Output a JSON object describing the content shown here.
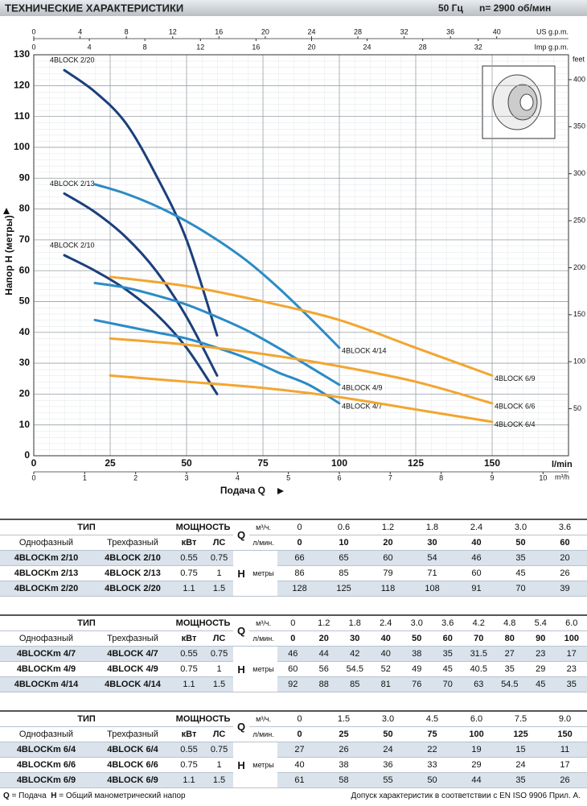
{
  "header": {
    "title": "ТЕХНИЧЕСКИЕ ХАРАКТЕРИСТИКИ",
    "freq": "50 Гц",
    "speed": "n= 2900 об/мин"
  },
  "chart_data": {
    "type": "line",
    "y_label": "Напор H (метры)",
    "x_label": "Подача Q",
    "x_unit": "l/min",
    "x_m3h_unit": "m³/h",
    "x_us_unit": "US g.p.m.",
    "x_imp_unit": "Imp g.p.m.",
    "y2_unit": "feet",
    "xlim": [
      0,
      175
    ],
    "xticks": [
      0,
      25,
      50,
      75,
      100,
      125,
      150
    ],
    "x_m3h_lim": [
      0,
      10.5
    ],
    "x_m3h_ticks": [
      0,
      1,
      2,
      3,
      4,
      5,
      6,
      7,
      8,
      9,
      10
    ],
    "x_us_lim": [
      0,
      46.2
    ],
    "x_us_ticks": [
      0,
      4,
      8,
      12,
      16,
      20,
      24,
      28,
      32,
      36,
      40
    ],
    "x_imp_lim": [
      0,
      38.5
    ],
    "x_imp_ticks": [
      0,
      4,
      8,
      12,
      16,
      20,
      24,
      28,
      32
    ],
    "ylim": [
      0,
      130
    ],
    "yticks": [
      0,
      10,
      20,
      30,
      40,
      50,
      60,
      70,
      80,
      90,
      100,
      110,
      120,
      130
    ],
    "y2lim": [
      0,
      426.5
    ],
    "y2ticks": [
      50,
      100,
      150,
      200,
      250,
      300,
      350,
      400
    ],
    "grid": true,
    "series": [
      {
        "name": "4BLOCK 2/20",
        "color": "#1b3f7c",
        "x": [
          10,
          20,
          30,
          40,
          50,
          60
        ],
        "values": [
          125,
          118,
          108,
          91,
          70,
          39
        ]
      },
      {
        "name": "4BLOCK 2/13",
        "color": "#1b3f7c",
        "x": [
          10,
          20,
          30,
          40,
          50,
          60
        ],
        "values": [
          85,
          79,
          71,
          60,
          45,
          26
        ]
      },
      {
        "name": "4BLOCK 2/10",
        "color": "#1b3f7c",
        "x": [
          10,
          20,
          30,
          40,
          50,
          60
        ],
        "values": [
          65,
          60,
          54,
          46,
          35,
          20
        ]
      },
      {
        "name": "4BLOCK 4/14",
        "color": "#2b8bc6",
        "x": [
          20,
          30,
          40,
          50,
          60,
          70,
          80,
          90,
          100
        ],
        "values": [
          88,
          85,
          81,
          76,
          70,
          63,
          54.5,
          45,
          35
        ]
      },
      {
        "name": "4BLOCK 4/9",
        "color": "#2b8bc6",
        "x": [
          20,
          30,
          40,
          50,
          60,
          70,
          80,
          90,
          100
        ],
        "values": [
          56,
          54.5,
          52,
          49,
          45,
          40.5,
          35,
          29,
          23
        ]
      },
      {
        "name": "4BLOCK 4/7",
        "color": "#2b8bc6",
        "x": [
          20,
          30,
          40,
          50,
          60,
          70,
          80,
          90,
          100
        ],
        "values": [
          44,
          42,
          40,
          38,
          35,
          31.5,
          27,
          23,
          17
        ]
      },
      {
        "name": "4BLOCK 6/9",
        "color": "#f3a530",
        "x": [
          25,
          50,
          75,
          100,
          125,
          150
        ],
        "values": [
          58,
          55,
          50,
          44,
          35,
          26
        ]
      },
      {
        "name": "4BLOCK 6/6",
        "color": "#f3a530",
        "x": [
          25,
          50,
          75,
          100,
          125,
          150
        ],
        "values": [
          38,
          36,
          33,
          29,
          24,
          17
        ]
      },
      {
        "name": "4BLOCK 6/4",
        "color": "#f3a530",
        "x": [
          25,
          50,
          75,
          100,
          125,
          150
        ],
        "values": [
          26,
          24,
          22,
          19,
          15,
          11
        ]
      }
    ]
  },
  "tables": [
    {
      "type_h": "ТИП",
      "power_h": "МОЩНОСТЬ",
      "q": "Q",
      "m3h": "м³/ч.",
      "lmin": "л/мин.",
      "single": "Однофазный",
      "three": "Трехфазный",
      "kw": "кВт",
      "hp": "ЛС",
      "h": "H",
      "unit": "метры",
      "flow_m3h": [
        "0",
        "0.6",
        "1.2",
        "1.8",
        "2.4",
        "3.0",
        "3.6"
      ],
      "flow_lmin": [
        "0",
        "10",
        "20",
        "30",
        "40",
        "50",
        "60"
      ],
      "rows": [
        [
          "4BLOCKm 2/10",
          "4BLOCK 2/10",
          "0.55",
          "0.75",
          [
            "66",
            "65",
            "60",
            "54",
            "46",
            "35",
            "20"
          ]
        ],
        [
          "4BLOCKm 2/13",
          "4BLOCK 2/13",
          "0.75",
          "1",
          [
            "86",
            "85",
            "79",
            "71",
            "60",
            "45",
            "26"
          ]
        ],
        [
          "4BLOCKm 2/20",
          "4BLOCK 2/20",
          "1.1",
          "1.5",
          [
            "128",
            "125",
            "118",
            "108",
            "91",
            "70",
            "39"
          ]
        ]
      ]
    },
    {
      "type_h": "ТИП",
      "power_h": "МОЩНОСТЬ",
      "q": "Q",
      "m3h": "м³/ч.",
      "lmin": "л/мин.",
      "single": "Однофазный",
      "three": "Трехфазный",
      "kw": "кВт",
      "hp": "ЛС",
      "h": "H",
      "unit": "метры",
      "flow_m3h": [
        "0",
        "1.2",
        "1.8",
        "2.4",
        "3.0",
        "3.6",
        "4.2",
        "4.8",
        "5.4",
        "6.0"
      ],
      "flow_lmin": [
        "0",
        "20",
        "30",
        "40",
        "50",
        "60",
        "70",
        "80",
        "90",
        "100"
      ],
      "rows": [
        [
          "4BLOCKm 4/7",
          "4BLOCK 4/7",
          "0.55",
          "0.75",
          [
            "46",
            "44",
            "42",
            "40",
            "38",
            "35",
            "31.5",
            "27",
            "23",
            "17"
          ]
        ],
        [
          "4BLOCKm 4/9",
          "4BLOCK 4/9",
          "0.75",
          "1",
          [
            "60",
            "56",
            "54.5",
            "52",
            "49",
            "45",
            "40.5",
            "35",
            "29",
            "23"
          ]
        ],
        [
          "4BLOCKm 4/14",
          "4BLOCK 4/14",
          "1.1",
          "1.5",
          [
            "92",
            "88",
            "85",
            "81",
            "76",
            "70",
            "63",
            "54.5",
            "45",
            "35"
          ]
        ]
      ]
    },
    {
      "type_h": "ТИП",
      "power_h": "МОЩНОСТЬ",
      "q": "Q",
      "m3h": "м³/ч.",
      "lmin": "л/мин.",
      "single": "Однофазный",
      "three": "Трехфазный",
      "kw": "кВт",
      "hp": "ЛС",
      "h": "H",
      "unit": "метры",
      "flow_m3h": [
        "0",
        "1.5",
        "3.0",
        "4.5",
        "6.0",
        "7.5",
        "9.0"
      ],
      "flow_lmin": [
        "0",
        "25",
        "50",
        "75",
        "100",
        "125",
        "150"
      ],
      "rows": [
        [
          "4BLOCKm 6/4",
          "4BLOCK 6/4",
          "0.55",
          "0.75",
          [
            "27",
            "26",
            "24",
            "22",
            "19",
            "15",
            "11"
          ]
        ],
        [
          "4BLOCKm 6/6",
          "4BLOCK 6/6",
          "0.75",
          "1",
          [
            "40",
            "38",
            "36",
            "33",
            "29",
            "24",
            "17"
          ]
        ],
        [
          "4BLOCKm 6/9",
          "4BLOCK 6/9",
          "1.1",
          "1.5",
          [
            "61",
            "58",
            "55",
            "50",
            "44",
            "35",
            "26"
          ]
        ]
      ]
    }
  ],
  "footer": {
    "q": "Q",
    "q_text": "= Подача",
    "h": "H",
    "h_text": "= Общий манометрический напор",
    "note": "Допуск характеристик в соответствии с EN ISO 9906 Прил. А."
  }
}
